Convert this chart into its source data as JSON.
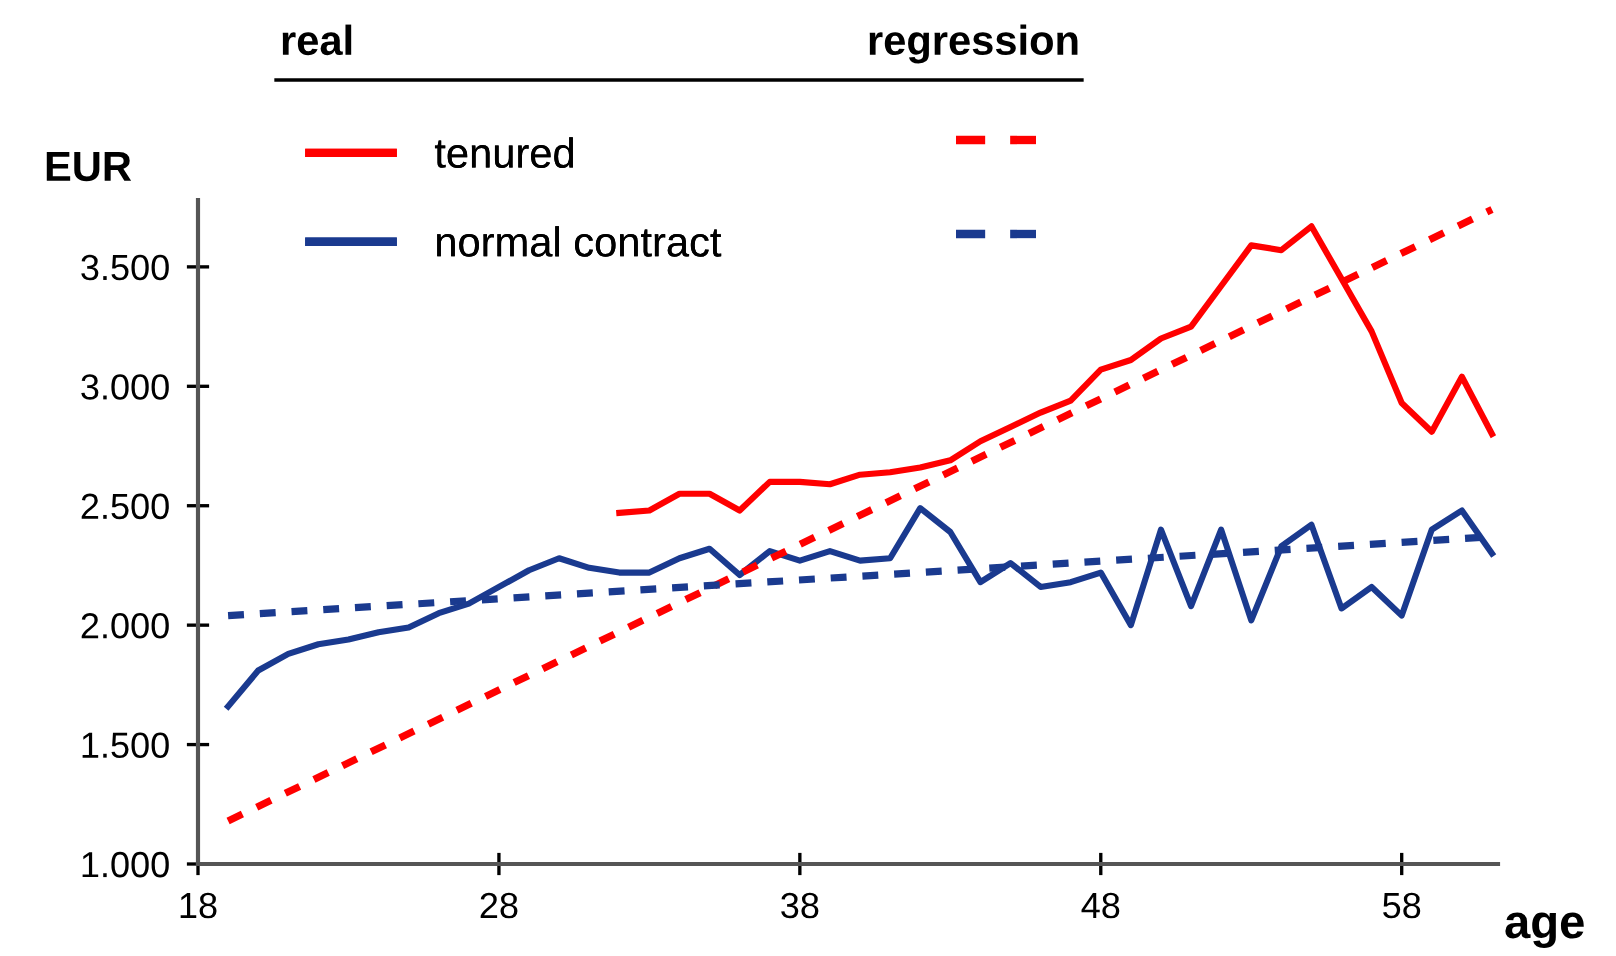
{
  "chart_data": {
    "type": "line",
    "xlabel": "age",
    "ylabel": "EUR",
    "annotations": [
      "real",
      "regression"
    ],
    "xlim": [
      18,
      61.2
    ],
    "xticks": [
      18,
      28,
      38,
      48,
      58
    ],
    "ylim": [
      1000,
      3780
    ],
    "yticks": [
      {
        "value": 1000,
        "label": "1.000"
      },
      {
        "value": 1500,
        "label": "1.500"
      },
      {
        "value": 2000,
        "label": "2.000"
      },
      {
        "value": 2500,
        "label": "2.500"
      },
      {
        "value": 3000,
        "label": "3.000"
      },
      {
        "value": 3500,
        "label": "3.500"
      }
    ],
    "grid": false,
    "legend": "top",
    "marker": "none",
    "series": [
      {
        "name": "tenured",
        "color": "#ff0000",
        "line_style": "solid",
        "x": [
          32,
          33,
          34,
          35,
          36,
          37,
          38,
          39,
          40,
          41,
          42,
          43,
          44,
          45,
          46,
          47,
          48,
          49,
          50,
          51,
          52,
          53,
          54,
          55,
          56,
          57,
          58,
          59,
          60,
          61
        ],
        "values": [
          2470,
          2480,
          2550,
          2550,
          2480,
          2600,
          2600,
          2590,
          2630,
          2640,
          2660,
          2690,
          2770,
          2830,
          2890,
          2940,
          3070,
          3110,
          3200,
          3250,
          3420,
          3590,
          3570,
          3670,
          3450,
          3230,
          2930,
          2810,
          3040,
          2800
        ]
      },
      {
        "name": "normal contract",
        "color": "#1a3a8f",
        "line_style": "solid",
        "x": [
          19,
          20,
          21,
          22,
          23,
          24,
          25,
          26,
          27,
          28,
          29,
          30,
          31,
          32,
          33,
          34,
          35,
          36,
          37,
          38,
          39,
          40,
          41,
          42,
          43,
          44,
          45,
          46,
          47,
          48,
          49,
          50,
          51,
          52,
          53,
          54,
          55,
          56,
          57,
          58,
          59,
          60,
          61
        ],
        "values": [
          1660,
          1810,
          1880,
          1920,
          1940,
          1970,
          1990,
          2050,
          2090,
          2160,
          2230,
          2280,
          2240,
          2220,
          2220,
          2280,
          2320,
          2210,
          2310,
          2270,
          2310,
          2270,
          2280,
          2490,
          2390,
          2180,
          2260,
          2160,
          2180,
          2220,
          2000,
          2400,
          2080,
          2400,
          2020,
          2330,
          2420,
          2070,
          2160,
          2040,
          2400,
          2480,
          2300
        ]
      },
      {
        "type": "line",
        "color": "#ff0000",
        "line_style": "dashed",
        "x": [
          19,
          61
        ],
        "values": [
          1180,
          3740
        ]
      },
      {
        "type": "line",
        "color": "#1a3a8f",
        "line_style": "dashed",
        "x": [
          19,
          61
        ],
        "values": [
          2040,
          2370
        ]
      }
    ]
  }
}
